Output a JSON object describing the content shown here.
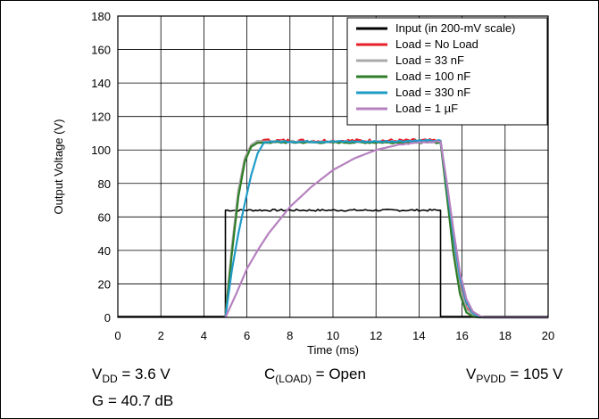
{
  "chart_data": {
    "type": "line",
    "xlabel": "Time (ms)",
    "ylabel": "Output Voltage (V)",
    "xlim": [
      0,
      20
    ],
    "ylim": [
      0,
      180
    ],
    "xticks": [
      0,
      2,
      4,
      6,
      8,
      10,
      12,
      14,
      16,
      18,
      20
    ],
    "yticks": [
      0,
      20,
      40,
      60,
      80,
      100,
      120,
      140,
      160,
      180
    ],
    "grid": true,
    "legend_position": "top-right",
    "series": [
      {
        "name": "Input (in 200-mV scale)",
        "color": "#000000",
        "noise": 0.6,
        "x": [
          0,
          4.95,
          5.0,
          5.0,
          15.0,
          15.0,
          20
        ],
        "y": [
          0.5,
          0.5,
          0.5,
          64,
          64,
          0.5,
          0.5
        ]
      },
      {
        "name": "Load = No Load",
        "color": "#e8202a",
        "noise": 1.0,
        "x": [
          5.0,
          5.3,
          5.6,
          5.9,
          6.2,
          6.5,
          6.8,
          7.0,
          8,
          10,
          12,
          14,
          15.0,
          15.3,
          15.6,
          15.9,
          16.2,
          16.5,
          16.8,
          17.0,
          20
        ],
        "y": [
          0,
          40,
          75,
          95,
          103,
          105,
          105.5,
          105.5,
          105.5,
          105.5,
          105.5,
          105.5,
          105.5,
          78,
          45,
          20,
          6,
          1.5,
          0.5,
          0,
          0
        ]
      },
      {
        "name": "Load = 33 nF",
        "color": "#a9a9a9",
        "noise": 0.6,
        "x": [
          5.0,
          5.3,
          5.6,
          5.9,
          6.2,
          6.5,
          6.8,
          7.0,
          8,
          10,
          12,
          14,
          15.0,
          15.3,
          15.6,
          15.9,
          16.2,
          16.5,
          16.8,
          17.0,
          20
        ],
        "y": [
          0,
          42,
          76,
          95,
          103,
          105,
          105,
          105,
          105,
          105,
          105,
          105,
          105,
          75,
          42,
          18,
          5,
          1.5,
          0.5,
          0,
          0
        ]
      },
      {
        "name": "Load = 100 nF",
        "color": "#2e7d27",
        "noise": 0.5,
        "x": [
          5.0,
          5.3,
          5.6,
          5.9,
          6.2,
          6.5,
          6.8,
          7.0,
          8,
          10,
          12,
          14,
          15.0,
          15.3,
          15.6,
          15.9,
          16.2,
          16.5,
          16.8,
          17.0,
          20
        ],
        "y": [
          0,
          38,
          72,
          93,
          102,
          104.5,
          104.5,
          104.5,
          104.5,
          104.5,
          104.5,
          104.5,
          104.5,
          72,
          38,
          14,
          3,
          0.5,
          0,
          0,
          0
        ]
      },
      {
        "name": "Load = 330 nF",
        "color": "#1f9bc8",
        "noise": 0.5,
        "x": [
          5.0,
          5.3,
          5.6,
          5.9,
          6.2,
          6.5,
          6.8,
          7.0,
          8,
          10,
          12,
          14,
          15.0,
          15.3,
          15.6,
          15.9,
          16.2,
          16.5,
          16.8,
          17.0,
          20
        ],
        "y": [
          0,
          28,
          50,
          68,
          85,
          98,
          104.5,
          105,
          105,
          105,
          105,
          105.5,
          105.5,
          78,
          48,
          24,
          9,
          2.5,
          0.5,
          0,
          0
        ]
      },
      {
        "name": "Load = 1 µF",
        "color": "#b581bf",
        "noise": 0.3,
        "x": [
          5.0,
          5.5,
          6,
          6.5,
          7,
          8,
          9,
          10,
          11,
          12,
          13,
          14,
          15.0,
          15.3,
          15.6,
          15.9,
          16.2,
          16.5,
          16.8,
          17.0,
          20
        ],
        "y": [
          0,
          14,
          29,
          40,
          50,
          66,
          78,
          88,
          95,
          100,
          103,
          104.5,
          105,
          80,
          52,
          27,
          11,
          3.5,
          1,
          0,
          0
        ]
      }
    ]
  },
  "conditions": {
    "vdd": {
      "main": "V",
      "sub": "DD",
      "value": " = 3.6 V"
    },
    "gain": "G = 40.7 dB",
    "cload": {
      "main": "C",
      "sub": "(LOAD)",
      "value": " = Open"
    },
    "vpvdd": {
      "main": "V",
      "sub": "PVDD",
      "value": " = 105 V"
    }
  }
}
